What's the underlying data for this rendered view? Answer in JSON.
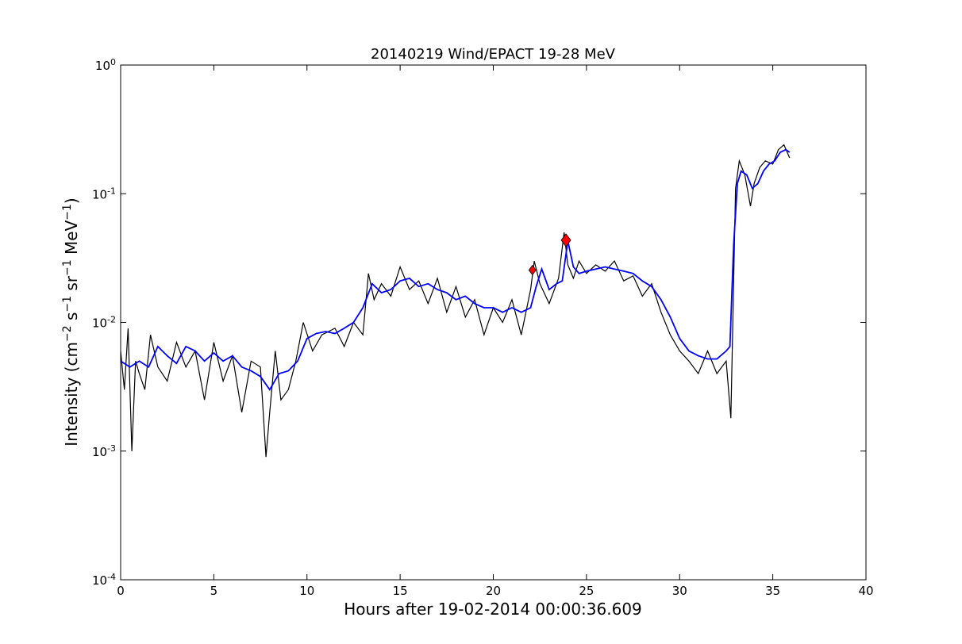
{
  "chart_data": {
    "type": "line",
    "title": "20140219 Wind/EPACT 19-28 MeV",
    "xlabel": "Hours after 19-02-2014 00:00:36.609",
    "ylabel_main": "Intensity (cm",
    "ylabel_parts": [
      "−2",
      " s",
      "−1",
      " sr",
      "−1",
      " MeV",
      "−1",
      ")"
    ],
    "xlim": [
      0,
      40
    ],
    "ylim": [
      0.0001,
      1
    ],
    "yscale": "log",
    "grid": false,
    "x_ticks": [
      0,
      5,
      10,
      15,
      20,
      25,
      30,
      35,
      40
    ],
    "x_tick_labels": [
      "0",
      "5",
      "10",
      "15",
      "20",
      "25",
      "30",
      "35",
      "40"
    ],
    "y_ticks": [
      {
        "base": "10",
        "exp": "0",
        "value": 1
      },
      {
        "base": "10",
        "exp": "-1",
        "value": 0.1
      },
      {
        "base": "10",
        "exp": "-2",
        "value": 0.01
      },
      {
        "base": "10",
        "exp": "-3",
        "value": 0.001
      },
      {
        "base": "10",
        "exp": "-4",
        "value": 0.0001
      }
    ],
    "series": [
      {
        "color": "#000000",
        "x": [
          0,
          0.2,
          0.4,
          0.6,
          0.8,
          1.0,
          1.3,
          1.6,
          2.0,
          2.5,
          3.0,
          3.5,
          4.0,
          4.5,
          5.0,
          5.5,
          6.0,
          6.5,
          7.0,
          7.5,
          7.8,
          8.0,
          8.3,
          8.6,
          9.0,
          9.4,
          9.8,
          10.3,
          10.8,
          11.5,
          12.0,
          12.5,
          13.0,
          13.3,
          13.6,
          14.0,
          14.5,
          15.0,
          15.5,
          16.0,
          16.5,
          17.0,
          17.5,
          18.0,
          18.5,
          19.0,
          19.5,
          20.0,
          20.5,
          21.0,
          21.5,
          22.0,
          22.2,
          22.5,
          23.0,
          23.5,
          23.8,
          24.0,
          24.3,
          24.6,
          25.0,
          25.5,
          26.0,
          26.5,
          27.0,
          27.5,
          28.0,
          28.5,
          29.0,
          29.5,
          30.0,
          30.5,
          31.0,
          31.5,
          32.0,
          32.5,
          32.75,
          33.0,
          33.2,
          33.5,
          33.8,
          34.0,
          34.3,
          34.6,
          35.0,
          35.3,
          35.6,
          35.9
        ],
        "y": [
          0.006,
          0.003,
          0.009,
          0.001,
          0.005,
          0.004,
          0.003,
          0.008,
          0.0045,
          0.0035,
          0.007,
          0.0045,
          0.006,
          0.0025,
          0.007,
          0.0035,
          0.0055,
          0.002,
          0.005,
          0.0045,
          0.0009,
          0.002,
          0.006,
          0.0025,
          0.003,
          0.005,
          0.01,
          0.006,
          0.008,
          0.009,
          0.0065,
          0.01,
          0.008,
          0.024,
          0.015,
          0.02,
          0.016,
          0.027,
          0.018,
          0.021,
          0.014,
          0.022,
          0.012,
          0.019,
          0.011,
          0.015,
          0.008,
          0.013,
          0.01,
          0.015,
          0.008,
          0.018,
          0.03,
          0.02,
          0.014,
          0.022,
          0.05,
          0.028,
          0.022,
          0.03,
          0.024,
          0.028,
          0.025,
          0.03,
          0.021,
          0.023,
          0.016,
          0.02,
          0.012,
          0.008,
          0.006,
          0.005,
          0.004,
          0.006,
          0.004,
          0.005,
          0.0018,
          0.11,
          0.18,
          0.14,
          0.08,
          0.12,
          0.16,
          0.18,
          0.17,
          0.22,
          0.24,
          0.19
        ]
      },
      {
        "color": "#0000ff",
        "x": [
          0,
          0.5,
          1.0,
          1.5,
          2.0,
          2.5,
          3.0,
          3.5,
          4.0,
          4.5,
          5.0,
          5.5,
          6.0,
          6.5,
          7.0,
          7.5,
          8.0,
          8.5,
          9.0,
          9.5,
          10.0,
          10.5,
          11.0,
          11.5,
          12.0,
          12.5,
          13.0,
          13.5,
          14.0,
          14.5,
          15.0,
          15.5,
          16.0,
          16.5,
          17.0,
          17.5,
          18.0,
          18.5,
          19.0,
          19.5,
          20.0,
          20.5,
          21.0,
          21.5,
          22.0,
          22.3,
          22.6,
          23.0,
          23.4,
          23.7,
          24.0,
          24.3,
          24.6,
          25.0,
          25.5,
          26.0,
          26.5,
          27.0,
          27.5,
          28.0,
          28.5,
          29.0,
          29.5,
          30.0,
          30.5,
          31.0,
          31.5,
          32.0,
          32.5,
          32.7,
          32.9,
          33.1,
          33.3,
          33.6,
          33.9,
          34.2,
          34.5,
          34.8,
          35.1,
          35.4,
          35.7,
          35.9
        ],
        "y": [
          0.005,
          0.0045,
          0.005,
          0.0045,
          0.0065,
          0.0055,
          0.0048,
          0.0065,
          0.006,
          0.005,
          0.0058,
          0.005,
          0.0055,
          0.0045,
          0.0042,
          0.0038,
          0.003,
          0.004,
          0.0042,
          0.005,
          0.0075,
          0.0082,
          0.0085,
          0.0082,
          0.009,
          0.01,
          0.013,
          0.02,
          0.017,
          0.018,
          0.021,
          0.022,
          0.019,
          0.02,
          0.018,
          0.017,
          0.015,
          0.016,
          0.014,
          0.013,
          0.013,
          0.012,
          0.013,
          0.012,
          0.013,
          0.019,
          0.026,
          0.018,
          0.02,
          0.021,
          0.043,
          0.027,
          0.024,
          0.025,
          0.026,
          0.027,
          0.026,
          0.025,
          0.024,
          0.021,
          0.019,
          0.015,
          0.011,
          0.0075,
          0.006,
          0.0055,
          0.0052,
          0.0052,
          0.006,
          0.0065,
          0.04,
          0.12,
          0.15,
          0.14,
          0.11,
          0.12,
          0.15,
          0.17,
          0.18,
          0.21,
          0.22,
          0.21
        ]
      }
    ],
    "markers": [
      {
        "x": 22.1,
        "y": 0.0255,
        "color": "#ff0000",
        "shape": "diamond",
        "size": "small"
      },
      {
        "x": 23.9,
        "y": 0.0435,
        "color": "#ff0000",
        "shape": "diamond",
        "size": "large"
      }
    ]
  }
}
